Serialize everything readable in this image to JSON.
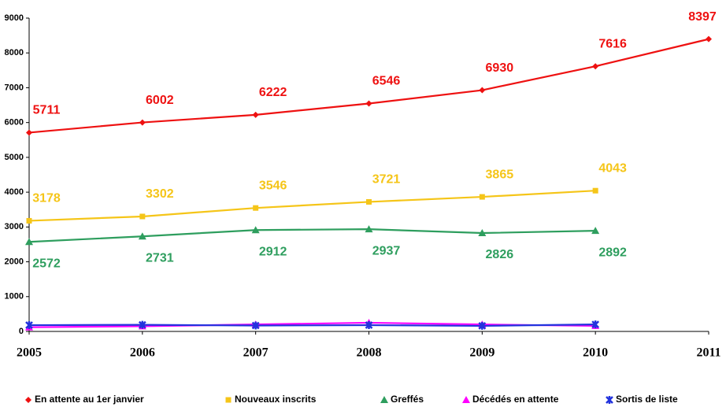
{
  "chart_data": {
    "type": "line",
    "categories": [
      "2005",
      "2006",
      "2007",
      "2008",
      "2009",
      "2010",
      "2011"
    ],
    "series": [
      {
        "name": "En attente au 1er janvier",
        "color": "#ee1111",
        "values": [
          5711,
          6002,
          6222,
          6546,
          6930,
          7616,
          8397
        ]
      },
      {
        "name": "Nouveaux inscrits",
        "color": "#f5c518",
        "values": [
          3178,
          3302,
          3546,
          3721,
          3865,
          4043,
          null
        ]
      },
      {
        "name": "Greffés",
        "color": "#2e9e5e",
        "values": [
          2572,
          2731,
          2912,
          2937,
          2826,
          2892,
          null
        ]
      },
      {
        "name": "Décédés en attente",
        "color": "#ff00ff",
        "values": [
          120,
          150,
          200,
          250,
          200,
          160,
          null
        ]
      },
      {
        "name": "Sortis de liste",
        "color": "#2233dd",
        "values": [
          180,
          190,
          170,
          180,
          160,
          200,
          null
        ]
      }
    ],
    "ylim": [
      0,
      9000
    ],
    "yticks": [
      0,
      1000,
      2000,
      3000,
      4000,
      5000,
      6000,
      7000,
      8000,
      9000
    ],
    "legend": "bottom"
  }
}
